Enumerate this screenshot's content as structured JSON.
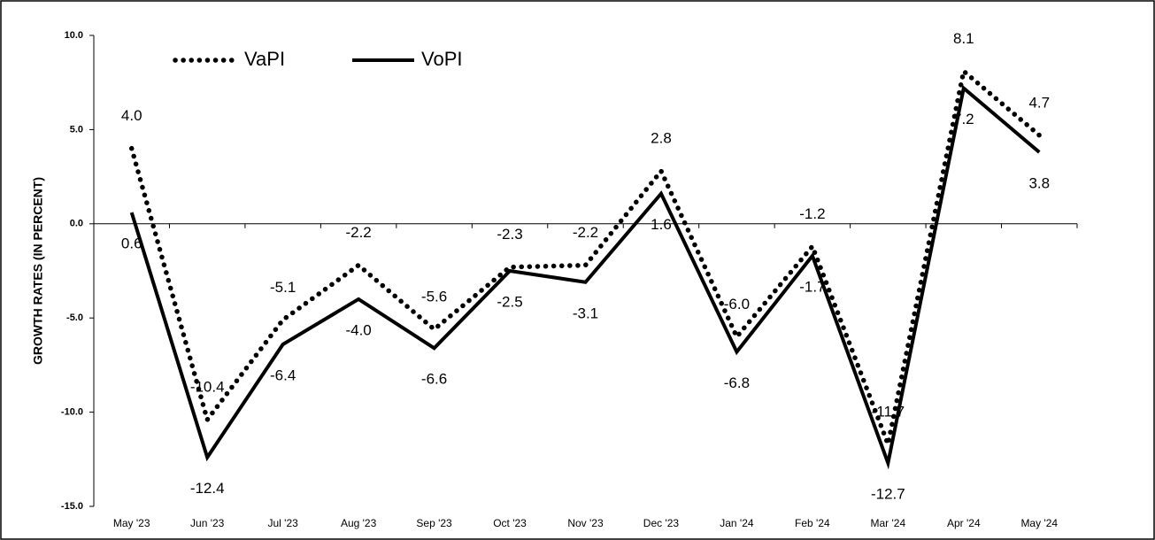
{
  "chart_data": {
    "type": "line",
    "ylabel": "GROWTH RATES (IN PERCENT)",
    "categories": [
      "May '23",
      "Jun '23",
      "Jul '23",
      "Aug '23",
      "Sep '23",
      "Oct '23",
      "Nov '23",
      "Dec '23",
      "Jan '24",
      "Feb '24",
      "Mar '24",
      "Apr '24",
      "May '24"
    ],
    "series": [
      {
        "name": "VaPI",
        "color": "#000000",
        "style": "dotted",
        "values": [
          4.0,
          -10.4,
          -5.1,
          -2.2,
          -5.6,
          -2.3,
          -2.2,
          2.8,
          -6.0,
          -1.2,
          -11.7,
          8.1,
          4.7
        ],
        "value_labels": [
          "4.0",
          "-10.4",
          "-5.1",
          "-2.2",
          "-5.6",
          "-2.3",
          "-2.2",
          "2.8",
          "-6.0",
          "-1.2",
          "-11.7",
          "8.1",
          "4.7"
        ]
      },
      {
        "name": "VoPI",
        "color": "#000000",
        "style": "solid",
        "values": [
          0.6,
          -12.4,
          -6.4,
          -4.0,
          -6.6,
          -2.5,
          -3.1,
          1.6,
          -6.8,
          -1.7,
          -12.7,
          7.2,
          3.8
        ],
        "value_labels": [
          "0.6",
          "-12.4",
          "-6.4",
          "-4.0",
          "-6.6",
          "-2.5",
          "-3.1",
          "1.6",
          "-6.8",
          "-1.7",
          "-12.7",
          "7.2",
          "3.8"
        ]
      }
    ],
    "ylim": [
      -15,
      10
    ],
    "yticks": [
      {
        "value": -15,
        "label": "-15.0"
      },
      {
        "value": -10,
        "label": "-10.0"
      },
      {
        "value": -5,
        "label": "-5.0"
      },
      {
        "value": 0,
        "label": "0.0"
      },
      {
        "value": 5,
        "label": "5.0"
      },
      {
        "value": 10,
        "label": "10.0"
      }
    ],
    "grid": false,
    "legend": "upper left"
  }
}
